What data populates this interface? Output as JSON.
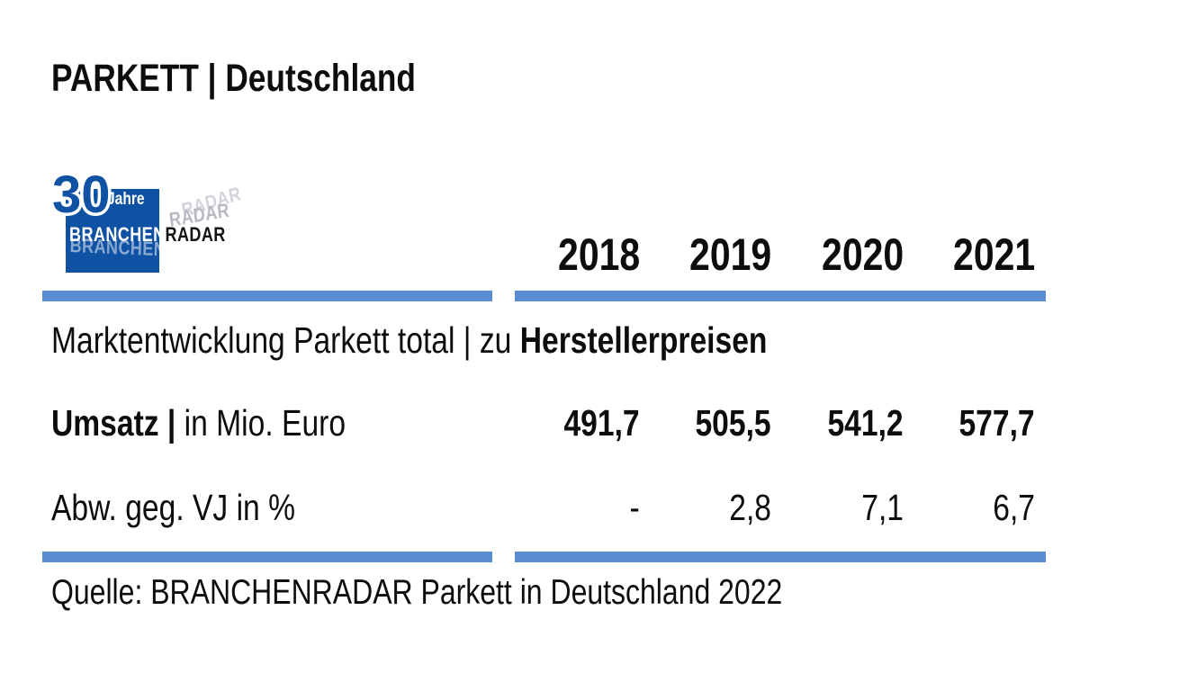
{
  "header": {
    "title": "PARKETT | Deutschland"
  },
  "logo": {
    "anniversary_number": "30",
    "anniversary_label": "Jahre",
    "brand_white": "BRANCHEN",
    "brand_black": "RADAR",
    "square_color": "#0f51a3"
  },
  "colors": {
    "rule_blue": "#5b8bd0",
    "text_black": "#0d0d0d"
  },
  "table": {
    "year_headers": [
      "2018",
      "2019",
      "2020",
      "2021"
    ],
    "section_title": {
      "regular": "Marktentwicklung Parkett total | zu ",
      "bold": "Herstellerpreisen"
    },
    "rows": [
      {
        "label_bold": "Umsatz | ",
        "label_regular": "in Mio. Euro",
        "values": [
          "491,7",
          "505,5",
          "541,2",
          "577,7"
        ]
      },
      {
        "label_bold": "",
        "label_regular": "Abw. geg. VJ in %",
        "values": [
          "-",
          "2,8",
          "7,1",
          "6,7"
        ]
      }
    ]
  },
  "footer": {
    "source": "Quelle: BRANCHENRADAR Parkett in Deutschland 2022"
  },
  "chart_data": {
    "type": "table",
    "title": "Marktentwicklung Parkett total | zu Herstellerpreisen",
    "categories": [
      "2018",
      "2019",
      "2020",
      "2021"
    ],
    "series": [
      {
        "name": "Umsatz | in Mio. Euro",
        "values": [
          491.7,
          505.5,
          541.2,
          577.7
        ]
      },
      {
        "name": "Abw. geg. VJ in %",
        "values": [
          null,
          2.8,
          7.1,
          6.7
        ]
      }
    ],
    "source": "Quelle: BRANCHENRADAR Parkett in Deutschland 2022"
  }
}
